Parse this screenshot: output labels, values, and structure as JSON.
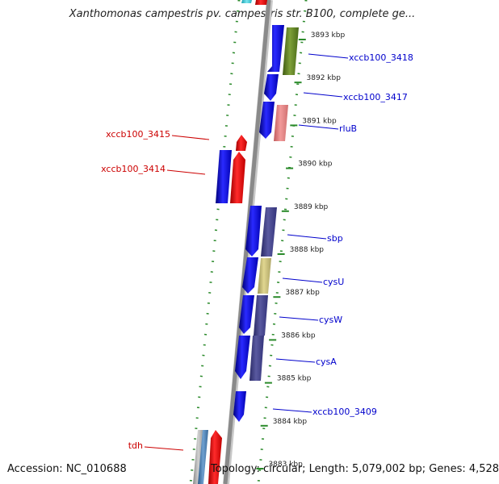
{
  "title": "Xanthomonas campestris pv. campestris str. B100, complete ge...",
  "footer": {
    "accession": "Accession: NC_010688",
    "summary": "Topology: circular; Length: 5,079,002 bp; Genes: 4,528"
  },
  "ticks": [
    {
      "kbp": 3893,
      "label": "3893 kbp"
    },
    {
      "kbp": 3892,
      "label": "3892 kbp"
    },
    {
      "kbp": 3891,
      "label": "3891 kbp"
    },
    {
      "kbp": 3890,
      "label": "3890 kbp"
    },
    {
      "kbp": 3889,
      "label": "3889 kbp"
    },
    {
      "kbp": 3888,
      "label": "3888 kbp"
    },
    {
      "kbp": 3887,
      "label": "3887 kbp"
    },
    {
      "kbp": 3886,
      "label": "3886 kbp"
    },
    {
      "kbp": 3885,
      "label": "3885 kbp"
    },
    {
      "kbp": 3884,
      "label": "3884 kbp"
    },
    {
      "kbp": 3883,
      "label": "3883 kbp"
    }
  ],
  "genes_right": [
    {
      "label": "xccb100_3418",
      "color": "#0000cc"
    },
    {
      "label": "xccb100_3417",
      "color": "#0000cc"
    },
    {
      "label": "rluB",
      "color": "#0000cc"
    },
    {
      "label": "sbp",
      "color": "#0000cc"
    },
    {
      "label": "cysU",
      "color": "#0000cc"
    },
    {
      "label": "cysW",
      "color": "#0000cc"
    },
    {
      "label": "cysA",
      "color": "#0000cc"
    },
    {
      "label": "xccb100_3409",
      "color": "#0000cc"
    }
  ],
  "genes_left": [
    {
      "label": "xccb100_3415",
      "color": "#cc0000"
    },
    {
      "label": "xccb100_3414",
      "color": "#cc0000"
    },
    {
      "label": "tdh",
      "color": "#cc0000"
    }
  ],
  "colors": {
    "forward_strand": "#0000ff",
    "reverse_strand": "#ff0000",
    "backbone": "#8a8a8a",
    "grid": "#2a8a2a"
  }
}
